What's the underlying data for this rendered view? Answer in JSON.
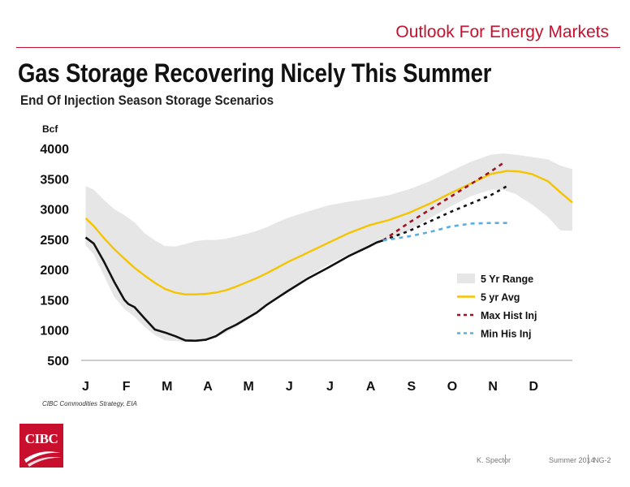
{
  "header": {
    "title": "Outlook For Energy Markets",
    "accent_color": "#c8102e"
  },
  "slide": {
    "title": "Gas Storage Recovering Nicely This Summer",
    "subtitle": "End Of Injection Season Storage Scenarios",
    "source": "CIBC Commodities Strategy, EIA"
  },
  "logo": {
    "text": "CIBC",
    "color": "#c8102e"
  },
  "footer": {
    "author": "K. Spector",
    "period": "Summer 2014",
    "page": "NG-2"
  },
  "chart_data": {
    "type": "line",
    "ylabel": "Bcf",
    "ylim": [
      500,
      4000
    ],
    "yticks": [
      500,
      1000,
      1500,
      2000,
      2500,
      3000,
      3500,
      4000
    ],
    "xlim": [
      0,
      12
    ],
    "xticks": [
      {
        "label": "J",
        "x": 0
      },
      {
        "label": "F",
        "x": 1
      },
      {
        "label": "M",
        "x": 2
      },
      {
        "label": "A",
        "x": 3
      },
      {
        "label": "M",
        "x": 4
      },
      {
        "label": "J",
        "x": 5
      },
      {
        "label": "J",
        "x": 6
      },
      {
        "label": "A",
        "x": 7
      },
      {
        "label": "S",
        "x": 8
      },
      {
        "label": "O",
        "x": 9
      },
      {
        "label": "N",
        "x": 10
      },
      {
        "label": "D",
        "x": 11
      }
    ],
    "legend_position": "bottom-right",
    "legend": [
      {
        "label": "5 Yr Range",
        "style": "band",
        "color": "#e6e6e6"
      },
      {
        "label": "5 yr Avg",
        "style": "solid",
        "color": "#f5c400"
      },
      {
        "label": "Max Hist Inj",
        "style": "dashed",
        "color": "#a3111f"
      },
      {
        "label": "Min His Inj",
        "style": "dashed",
        "color": "#5aafe0"
      }
    ],
    "series": [
      {
        "role": "range_upper",
        "color": "#e6e6e6",
        "points": [
          [
            0.05,
            3380
          ],
          [
            0.25,
            3320
          ],
          [
            0.5,
            3150
          ],
          [
            0.75,
            3000
          ],
          [
            1.0,
            2900
          ],
          [
            1.25,
            2780
          ],
          [
            1.5,
            2600
          ],
          [
            1.75,
            2480
          ],
          [
            2.0,
            2390
          ],
          [
            2.25,
            2380
          ],
          [
            2.5,
            2420
          ],
          [
            2.75,
            2470
          ],
          [
            3.0,
            2490
          ],
          [
            3.25,
            2490
          ],
          [
            3.5,
            2510
          ],
          [
            3.75,
            2550
          ],
          [
            4.0,
            2590
          ],
          [
            4.25,
            2640
          ],
          [
            4.5,
            2700
          ],
          [
            4.75,
            2780
          ],
          [
            5.0,
            2850
          ],
          [
            5.5,
            2960
          ],
          [
            6.0,
            3060
          ],
          [
            6.5,
            3120
          ],
          [
            7.0,
            3170
          ],
          [
            7.5,
            3230
          ],
          [
            8.0,
            3330
          ],
          [
            8.5,
            3460
          ],
          [
            9.0,
            3620
          ],
          [
            9.5,
            3780
          ],
          [
            10.0,
            3900
          ],
          [
            10.3,
            3920
          ],
          [
            10.6,
            3900
          ],
          [
            11.0,
            3860
          ],
          [
            11.4,
            3820
          ],
          [
            11.7,
            3720
          ],
          [
            12.0,
            3660
          ]
        ]
      },
      {
        "role": "range_lower",
        "color": "#e6e6e6",
        "points": [
          [
            0.05,
            2400
          ],
          [
            0.25,
            2250
          ],
          [
            0.5,
            1900
          ],
          [
            0.75,
            1550
          ],
          [
            1.0,
            1350
          ],
          [
            1.25,
            1220
          ],
          [
            1.5,
            1050
          ],
          [
            1.75,
            920
          ],
          [
            2.0,
            830
          ],
          [
            2.25,
            820
          ],
          [
            2.5,
            800
          ],
          [
            2.75,
            810
          ],
          [
            3.0,
            830
          ],
          [
            3.25,
            880
          ],
          [
            3.5,
            960
          ],
          [
            3.75,
            1050
          ],
          [
            4.0,
            1160
          ],
          [
            4.25,
            1280
          ],
          [
            4.5,
            1400
          ],
          [
            4.75,
            1530
          ],
          [
            5.0,
            1640
          ],
          [
            5.5,
            1880
          ],
          [
            6.0,
            2080
          ],
          [
            6.5,
            2250
          ],
          [
            7.0,
            2380
          ],
          [
            7.5,
            2500
          ],
          [
            8.0,
            2650
          ],
          [
            8.5,
            2850
          ],
          [
            9.0,
            3040
          ],
          [
            9.5,
            3210
          ],
          [
            10.0,
            3320
          ],
          [
            10.3,
            3320
          ],
          [
            10.6,
            3250
          ],
          [
            11.0,
            3080
          ],
          [
            11.4,
            2870
          ],
          [
            11.7,
            2650
          ],
          [
            12.0,
            2640
          ]
        ]
      },
      {
        "name": "5 yr Avg",
        "color": "#f5c400",
        "style": "solid",
        "points": [
          [
            0.05,
            2850
          ],
          [
            0.25,
            2720
          ],
          [
            0.5,
            2520
          ],
          [
            0.75,
            2340
          ],
          [
            1.0,
            2180
          ],
          [
            1.25,
            2030
          ],
          [
            1.5,
            1900
          ],
          [
            1.75,
            1780
          ],
          [
            2.0,
            1680
          ],
          [
            2.25,
            1620
          ],
          [
            2.5,
            1590
          ],
          [
            2.75,
            1590
          ],
          [
            3.0,
            1600
          ],
          [
            3.25,
            1620
          ],
          [
            3.5,
            1660
          ],
          [
            3.75,
            1720
          ],
          [
            4.0,
            1790
          ],
          [
            4.25,
            1860
          ],
          [
            4.5,
            1940
          ],
          [
            4.75,
            2030
          ],
          [
            5.0,
            2120
          ],
          [
            5.5,
            2280
          ],
          [
            6.0,
            2440
          ],
          [
            6.5,
            2600
          ],
          [
            7.0,
            2730
          ],
          [
            7.5,
            2820
          ],
          [
            8.0,
            2940
          ],
          [
            8.5,
            3090
          ],
          [
            9.0,
            3260
          ],
          [
            9.5,
            3420
          ],
          [
            10.0,
            3580
          ],
          [
            10.4,
            3630
          ],
          [
            10.7,
            3620
          ],
          [
            11.0,
            3580
          ],
          [
            11.4,
            3460
          ],
          [
            11.7,
            3280
          ],
          [
            12.0,
            3110
          ]
        ]
      },
      {
        "name": "2014 Storage",
        "color": "#111111",
        "style": "solid",
        "points": [
          [
            0.05,
            2530
          ],
          [
            0.25,
            2430
          ],
          [
            0.5,
            2130
          ],
          [
            0.75,
            1800
          ],
          [
            1.0,
            1500
          ],
          [
            1.1,
            1430
          ],
          [
            1.25,
            1380
          ],
          [
            1.5,
            1190
          ],
          [
            1.75,
            1010
          ],
          [
            2.0,
            960
          ],
          [
            2.25,
            900
          ],
          [
            2.5,
            830
          ],
          [
            2.75,
            825
          ],
          [
            3.0,
            840
          ],
          [
            3.25,
            900
          ],
          [
            3.5,
            1010
          ],
          [
            3.75,
            1090
          ],
          [
            4.0,
            1190
          ],
          [
            4.25,
            1290
          ],
          [
            4.5,
            1420
          ],
          [
            4.75,
            1530
          ],
          [
            5.0,
            1640
          ],
          [
            5.5,
            1850
          ],
          [
            6.0,
            2030
          ],
          [
            6.5,
            2220
          ],
          [
            7.0,
            2380
          ],
          [
            7.2,
            2450
          ],
          [
            7.35,
            2480
          ]
        ]
      },
      {
        "name": "Max Hist Inj",
        "color": "#a3111f",
        "style": "dashed",
        "points": [
          [
            7.35,
            2480
          ],
          [
            8.0,
            2780
          ],
          [
            9.0,
            3200
          ],
          [
            10.0,
            3620
          ],
          [
            10.3,
            3760
          ]
        ]
      },
      {
        "name": "Black Projection",
        "color": "#111111",
        "style": "dashed",
        "points": [
          [
            7.35,
            2480
          ],
          [
            8.0,
            2640
          ],
          [
            9.0,
            2950
          ],
          [
            10.0,
            3230
          ],
          [
            10.4,
            3380
          ]
        ]
      },
      {
        "name": "Min His Inj",
        "color": "#5aafe0",
        "style": "dashed",
        "points": [
          [
            7.35,
            2480
          ],
          [
            8.0,
            2550
          ],
          [
            8.5,
            2620
          ],
          [
            9.0,
            2710
          ],
          [
            9.5,
            2760
          ],
          [
            10.0,
            2770
          ],
          [
            10.4,
            2770
          ]
        ]
      }
    ]
  }
}
